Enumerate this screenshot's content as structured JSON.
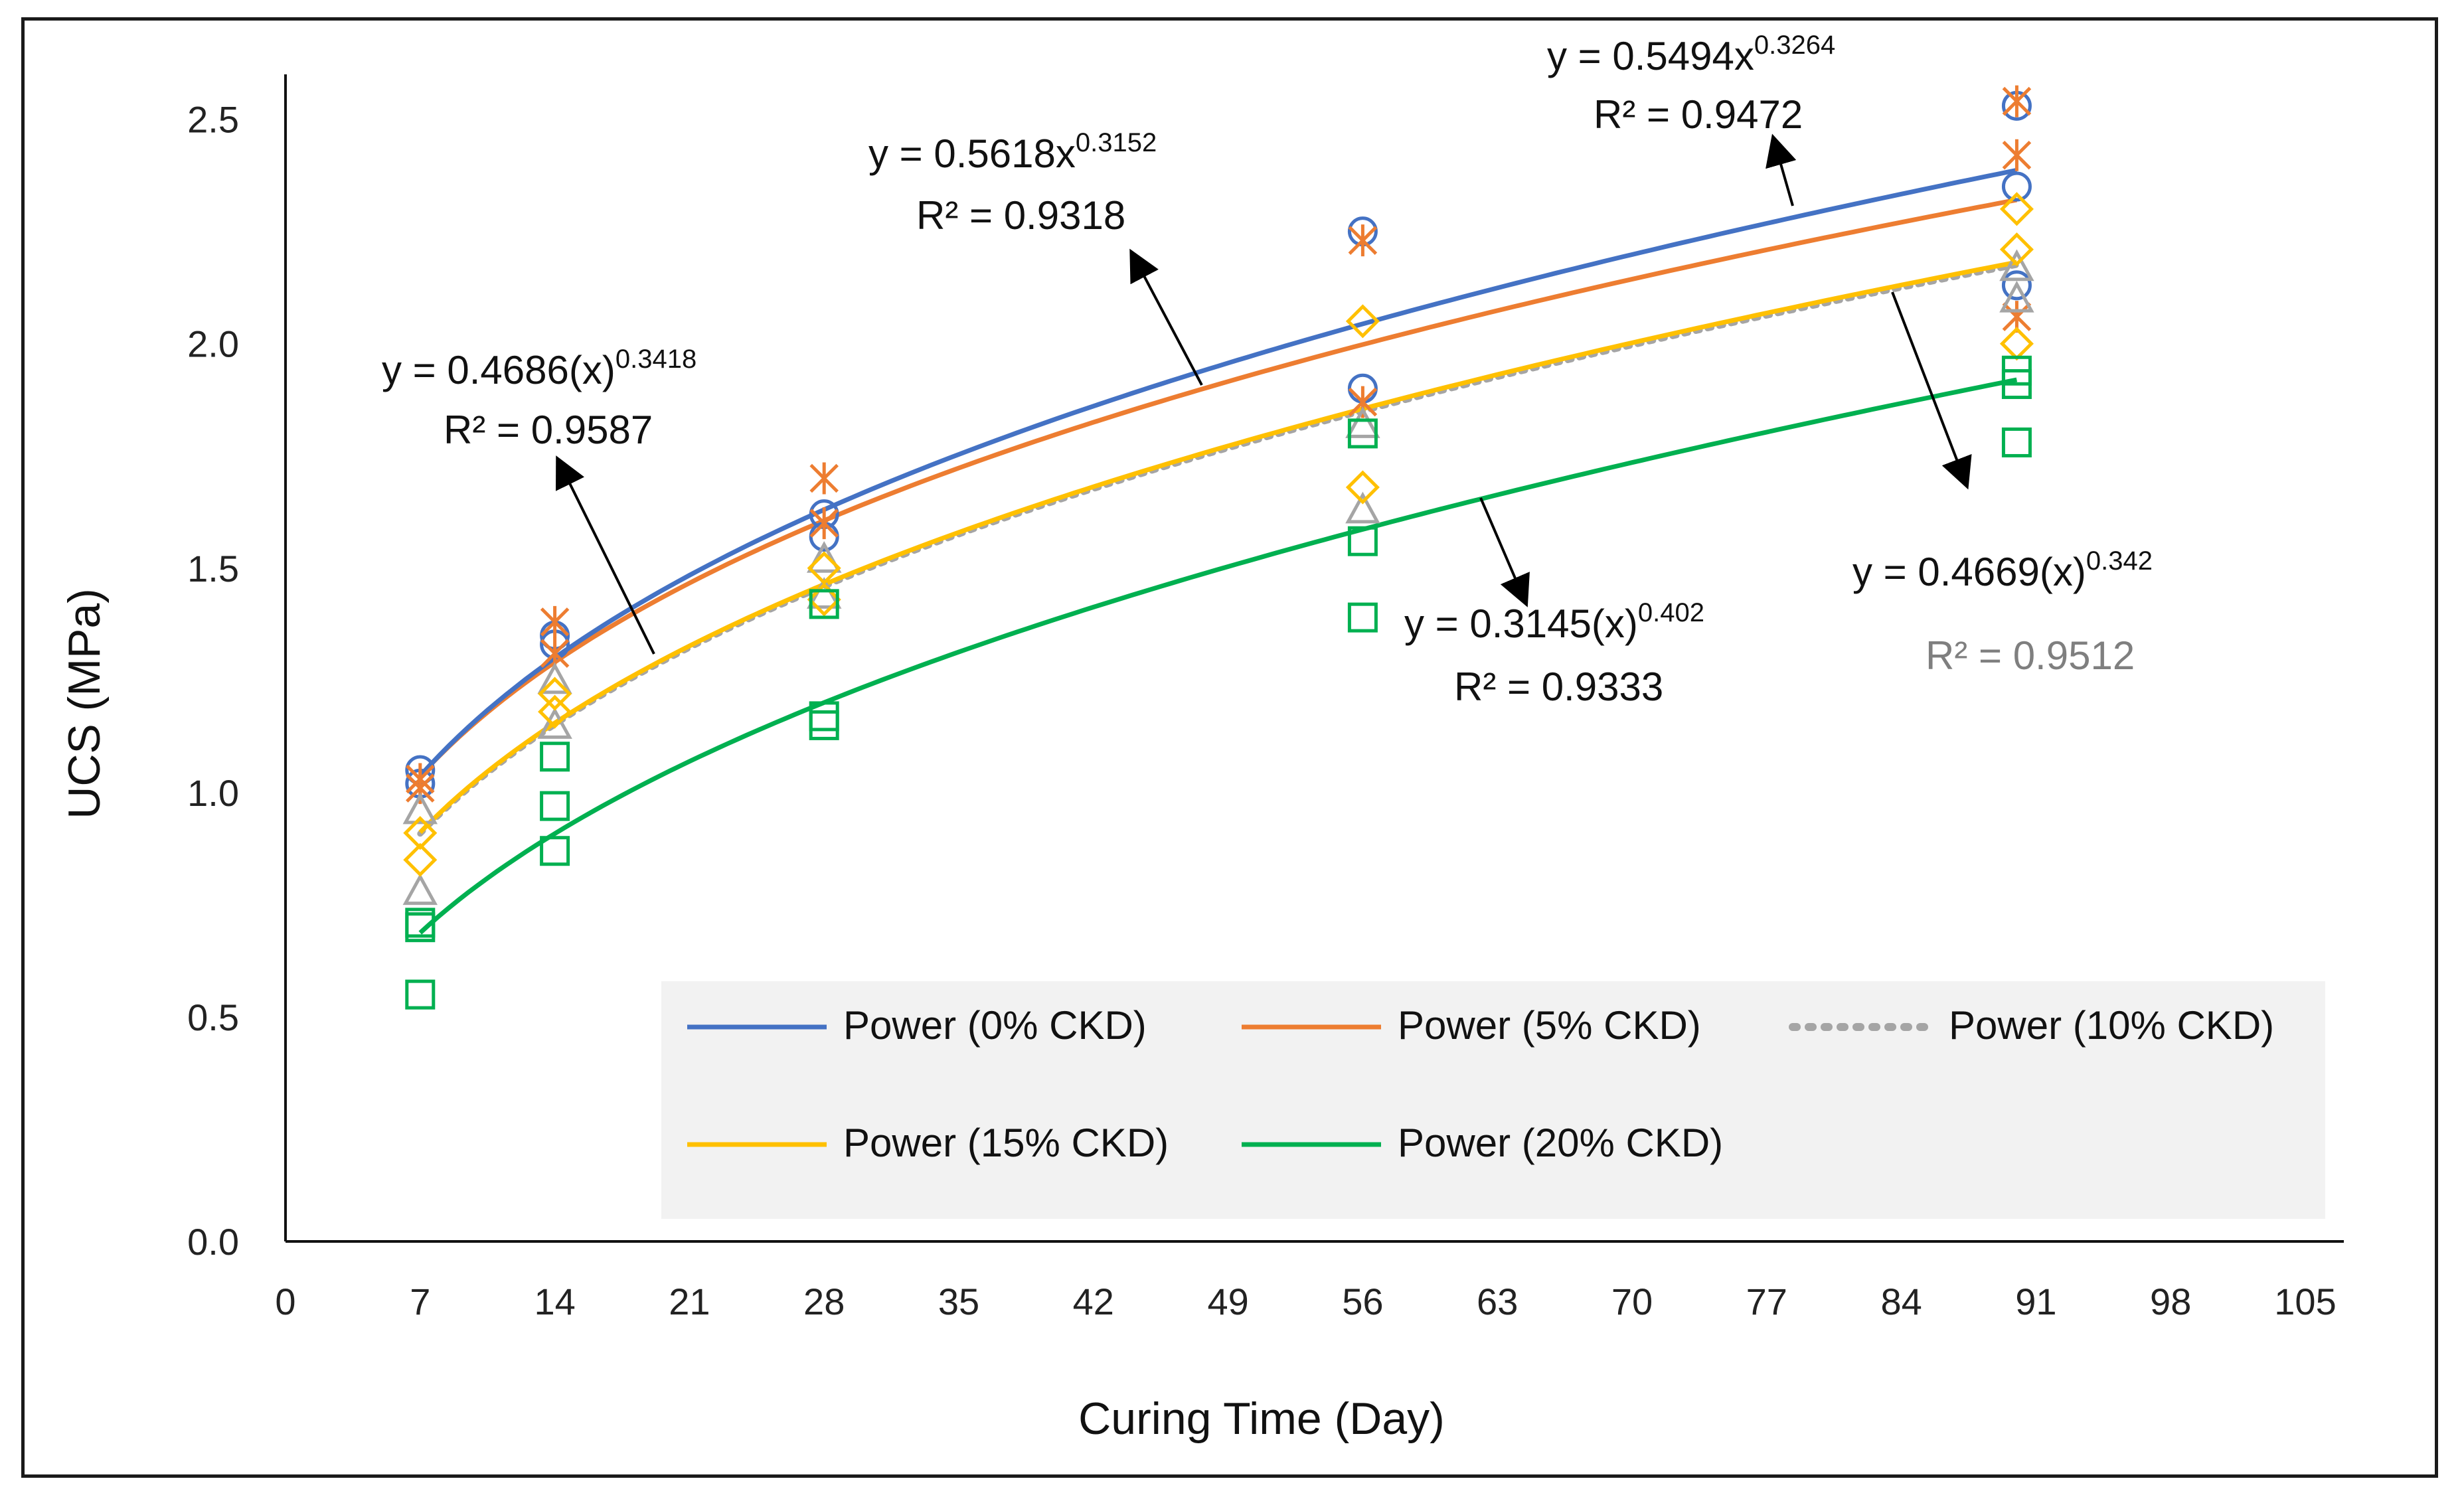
{
  "chart_data": {
    "type": "scatter",
    "title": "",
    "xlabel": "Curing Time (Day)",
    "ylabel": "UCS (MPa)",
    "xlim": [
      0,
      105
    ],
    "ylim": [
      0.0,
      2.6
    ],
    "x_ticks": [
      "0",
      "7",
      "14",
      "21",
      "28",
      "35",
      "42",
      "49",
      "56",
      "63",
      "70",
      "77",
      "84",
      "91",
      "98",
      "105"
    ],
    "y_ticks": [
      "0.0",
      "0.5",
      "1.0",
      "1.5",
      "2.0",
      "2.5"
    ],
    "grid": false,
    "legend_position": "bottom-right inside plot",
    "series": [
      {
        "name": "Power (0% CKD)",
        "color": "#4472C4",
        "marker": "circle",
        "line_style": "solid",
        "fit": {
          "a": 0.5494,
          "b": 0.3264,
          "equation": "y = 0.5494x",
          "exponent": "0.3264",
          "r2": "R² = 0.9472"
        },
        "points": [
          [
            7,
            1.05
          ],
          [
            7,
            1.02
          ],
          [
            14,
            1.35
          ],
          [
            14,
            1.33
          ],
          [
            28,
            1.62
          ],
          [
            28,
            1.57
          ],
          [
            56,
            2.25
          ],
          [
            56,
            1.9
          ],
          [
            90,
            2.53
          ],
          [
            90,
            2.35
          ],
          [
            90,
            2.13
          ]
        ]
      },
      {
        "name": "Power (5% CKD)",
        "color": "#ED7D31",
        "marker": "asterisk",
        "line_style": "solid",
        "fit": {
          "a": 0.5618,
          "b": 0.3152,
          "equation": "y = 0.5618x",
          "exponent": "0.3152",
          "r2": "R² = 0.9318"
        },
        "points": [
          [
            7,
            1.03
          ],
          [
            7,
            1.01
          ],
          [
            14,
            1.38
          ],
          [
            14,
            1.31
          ],
          [
            28,
            1.7
          ],
          [
            28,
            1.6
          ],
          [
            56,
            2.23
          ],
          [
            56,
            1.87
          ],
          [
            90,
            2.54
          ],
          [
            90,
            2.42
          ],
          [
            90,
            2.06
          ]
        ]
      },
      {
        "name": "Power (10% CKD)",
        "color": "#A5A5A5",
        "marker": "triangle",
        "line_style": "dotted",
        "fit": {
          "a": 0.4669,
          "b": 0.342,
          "equation": "y = 0.4669(x)",
          "exponent": "0.342",
          "r2": "R² = 0.9512"
        },
        "points": [
          [
            7,
            0.96
          ],
          [
            7,
            0.78
          ],
          [
            14,
            1.25
          ],
          [
            14,
            1.15
          ],
          [
            28,
            1.52
          ],
          [
            28,
            1.44
          ],
          [
            56,
            1.82
          ],
          [
            56,
            1.63
          ],
          [
            90,
            2.17
          ],
          [
            90,
            2.1
          ]
        ]
      },
      {
        "name": "Power (15% CKD)",
        "color": "#FFC000",
        "marker": "diamond",
        "line_style": "solid",
        "fit": {
          "a": 0.4686,
          "b": 0.3418,
          "equation": "y = 0.4686(x)",
          "exponent": "0.3418",
          "r2": "R² = 0.9587"
        },
        "points": [
          [
            7,
            0.91
          ],
          [
            7,
            0.85
          ],
          [
            14,
            1.22
          ],
          [
            14,
            1.18
          ],
          [
            28,
            1.5
          ],
          [
            28,
            1.43
          ],
          [
            56,
            2.05
          ],
          [
            56,
            1.68
          ],
          [
            90,
            2.3
          ],
          [
            90,
            2.21
          ],
          [
            90,
            2.0
          ]
        ]
      },
      {
        "name": "Power (20% CKD)",
        "color": "#00B050",
        "marker": "square",
        "line_style": "solid",
        "fit": {
          "a": 0.3145,
          "b": 0.402,
          "equation": "y = 0.3145(x)",
          "exponent": "0.402",
          "r2": "R² = 0.9333"
        },
        "points": [
          [
            7,
            0.71
          ],
          [
            7,
            0.7
          ],
          [
            7,
            0.55
          ],
          [
            14,
            1.08
          ],
          [
            14,
            0.97
          ],
          [
            14,
            0.87
          ],
          [
            28,
            1.17
          ],
          [
            28,
            1.15
          ],
          [
            28,
            1.42
          ],
          [
            56,
            1.8
          ],
          [
            56,
            1.56
          ],
          [
            56,
            1.39
          ],
          [
            90,
            1.94
          ],
          [
            90,
            1.91
          ],
          [
            90,
            1.78
          ]
        ]
      }
    ]
  }
}
